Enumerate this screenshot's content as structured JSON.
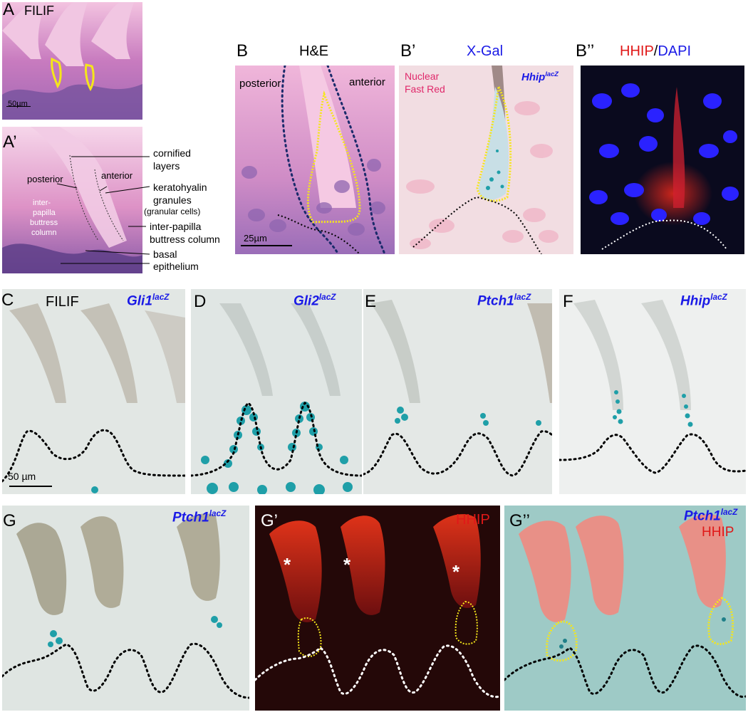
{
  "panels": {
    "A": {
      "label": "A",
      "title": "FILIF",
      "scale": "50µm"
    },
    "A2": {
      "label": "A’",
      "annotations": {
        "cornified": "cornified",
        "layers": "layers",
        "keratohyalin": "keratohyalin",
        "granules": "granules",
        "granular_cells": "(granular cells)",
        "interpapilla_right_1": "inter-papilla",
        "interpapilla_right_2": "buttress column",
        "basal": "basal",
        "epithelium": "epithelium",
        "posterior": "posterior",
        "anterior": "anterior",
        "inter": "inter-",
        "papilla": "papilla",
        "buttress": "buttress",
        "column": "column"
      }
    },
    "B": {
      "label": "B",
      "title": "H&E",
      "posterior": "posterior",
      "anterior": "anterior",
      "scale": "25µm"
    },
    "B1": {
      "label": "B’",
      "title": "X-Gal",
      "stain_1": "Nuclear",
      "stain_2": "Fast Red",
      "gene": "Hhip",
      "sup": "lacZ"
    },
    "B2": {
      "label": "B’’",
      "title_red": "HHIP",
      "title_sep": "/",
      "title_blue": "DAPI"
    },
    "C": {
      "label": "C",
      "title": "FILIF",
      "gene": "Gli1",
      "sup": "lacZ",
      "scale": "50 µm"
    },
    "D": {
      "label": "D",
      "gene": "Gli2",
      "sup": "lacZ"
    },
    "E": {
      "label": "E",
      "gene": "Ptch1",
      "sup": "lacZ"
    },
    "F": {
      "label": "F",
      "gene": "Hhip",
      "sup": "lacZ"
    },
    "G": {
      "label": "G",
      "gene": "Ptch1",
      "sup": "lacZ"
    },
    "G1": {
      "label": "G’",
      "title": "HHIP",
      "asterisk": "*"
    },
    "G2": {
      "label": "G’’",
      "gene": "Ptch1",
      "sup": "lacZ",
      "title2": "HHIP"
    }
  },
  "colors": {
    "he_pink": "#e7a6cf",
    "he_purple": "#8a5fa8",
    "blue_label": "#1a1ae6",
    "red_label": "#e01818",
    "xgal_blue": "#1f9fa8",
    "fluor_red": "#e0281c",
    "yellow_outline": "#f5e61a"
  }
}
